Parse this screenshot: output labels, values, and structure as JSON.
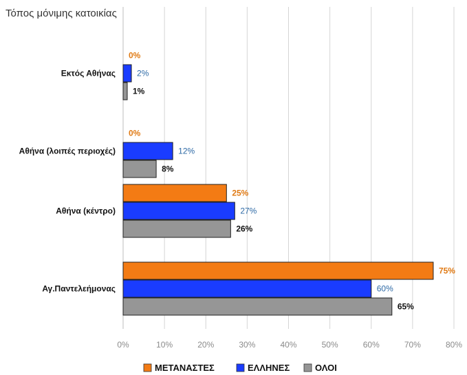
{
  "chart_data": {
    "type": "bar",
    "orientation": "horizontal",
    "title": "Τόπος μόνιμης κατοικίας",
    "categories": [
      "Εκτός Αθήνας",
      "Αθήνα (λοιπές περιοχές)",
      "Αθήνα (κέντρο)",
      "Αγ.Παντελεήμονας"
    ],
    "series": [
      {
        "name": "ΜΕΤΑΝΑΣΤΕΣ",
        "color": "#f37b14",
        "label_color": "#e07a14",
        "label_bold": true,
        "values": [
          0,
          0,
          25,
          75
        ],
        "labels": [
          "0%",
          "0%",
          "25%",
          "75%"
        ]
      },
      {
        "name": "ΕΛΛΗΝΕΣ",
        "color": "#1a3cff",
        "label_color": "#2e6aa6",
        "label_bold": false,
        "values": [
          2,
          12,
          27,
          60
        ],
        "labels": [
          "2%",
          "12%",
          "27%",
          "60%"
        ]
      },
      {
        "name": "ΟΛΟΙ",
        "color": "#969696",
        "label_color": "#111111",
        "label_bold": true,
        "values": [
          1,
          8,
          26,
          65
        ],
        "labels": [
          "1%",
          "8%",
          "26%",
          "65%"
        ]
      }
    ],
    "xlim": [
      0,
      80
    ],
    "x_ticks": [
      "0%",
      "10%",
      "20%",
      "30%",
      "40%",
      "50%",
      "60%",
      "70%",
      "80%"
    ],
    "grid": true,
    "legend_position": "bottom"
  }
}
